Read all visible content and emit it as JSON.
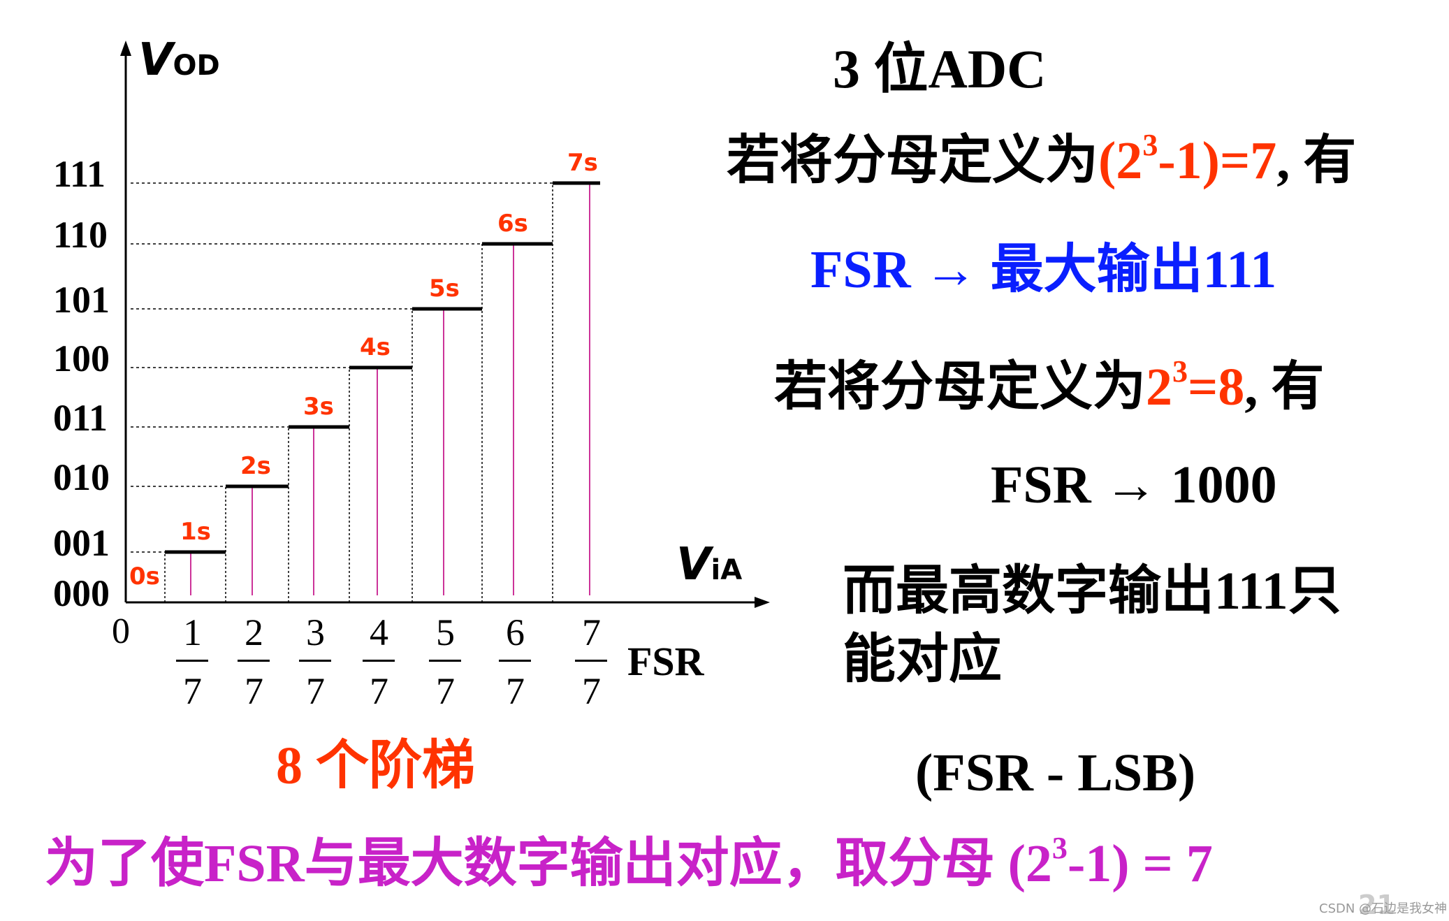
{
  "colors": {
    "red": "#ff3300",
    "blue": "#0a1fff",
    "magenta": "#c822c8",
    "pink_line": "#cc3399",
    "black": "#000000",
    "watermark": "#aaaaaa"
  },
  "diagram": {
    "y_axis_label": "V",
    "y_axis_sub": "OD",
    "x_axis_label": "V",
    "x_axis_sub": "iA",
    "origin_label": "0",
    "fsr_label": "FSR",
    "codes": [
      "000",
      "001",
      "010",
      "011",
      "100",
      "101",
      "110",
      "111"
    ],
    "step_labels": [
      "0s",
      "1s",
      "2s",
      "3s",
      "4s",
      "5s",
      "6s",
      "7s"
    ],
    "fractions": [
      {
        "num": "1",
        "den": "7"
      },
      {
        "num": "2",
        "den": "7"
      },
      {
        "num": "3",
        "den": "7"
      },
      {
        "num": "4",
        "den": "7"
      },
      {
        "num": "5",
        "den": "7"
      },
      {
        "num": "6",
        "den": "7"
      },
      {
        "num": "7",
        "den": "7"
      }
    ],
    "caption": "8 个阶梯"
  },
  "right": {
    "title": "3 位ADC",
    "line1_prefix": "若将分母定义为",
    "line1_formula_base": "(2",
    "line1_formula_exp": "3",
    "line1_formula_rest": "-1)=7",
    "line1_suffix": ", 有",
    "line2": "FSR → 最大输出111",
    "line3_prefix": "若将分母定义为",
    "line3_formula_base": "2",
    "line3_formula_exp": "3",
    "line3_formula_rest": "=8",
    "line3_suffix": ", 有",
    "line4": "FSR → 1000",
    "line5a": "而最高数字输出111只",
    "line5b": "能对应",
    "line6": "(FSR - LSB)"
  },
  "bottom": {
    "text": "为了使FSR与最大数字输出对应，取分母",
    "formula_base": "(2",
    "formula_exp": "3",
    "formula_rest": "-1) = 7"
  },
  "page_number": "21",
  "watermark": "CSDN @石边是我女神"
}
